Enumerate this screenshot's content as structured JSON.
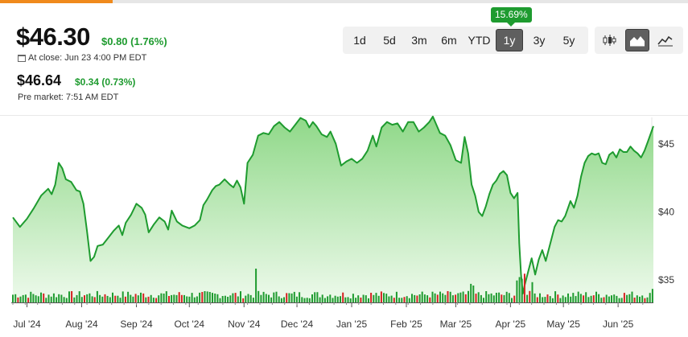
{
  "quote": {
    "price": "$46.30",
    "change": "$0.80 (1.76%)",
    "close_label": "At close: Jun 23 4:00 PM EDT",
    "pre_price": "$46.64",
    "pre_change": "$0.34 (0.73%)",
    "pre_label": "Pre market: 7:51 AM EDT"
  },
  "ranges": [
    "1d",
    "5d",
    "3m",
    "6m",
    "YTD",
    "1y",
    "3y",
    "5y"
  ],
  "active_range": "1y",
  "performance_badge": "15.69%",
  "chart_types": [
    {
      "name": "candlestick-chart-icon",
      "active": false
    },
    {
      "name": "area-chart-icon",
      "active": true
    },
    {
      "name": "line-chart-icon",
      "active": false
    }
  ],
  "colors": {
    "up": "#1e9b2f",
    "down": "#d62020",
    "area_top": "#8fd888",
    "area_bottom": "#eefaec",
    "accent": "#f08a1c"
  },
  "chart_data": {
    "type": "area",
    "title": "",
    "xlabel": "",
    "ylabel": "",
    "ylim": [
      32,
      48
    ],
    "y_ticks": [
      "$35",
      "$40",
      "$45"
    ],
    "y_tick_values": [
      35,
      40,
      45
    ],
    "x_ticks": [
      "Jul '24",
      "Aug '24",
      "Sep '24",
      "Oct '24",
      "Nov '24",
      "Dec '24",
      "Jan '25",
      "Feb '25",
      "Mar '25",
      "Apr '25",
      "May '25",
      "Jun '25"
    ],
    "x_tick_days": [
      8,
      39,
      70,
      100,
      131,
      161,
      192,
      223,
      251,
      282,
      312,
      343
    ],
    "x_range_days": [
      0,
      363
    ],
    "series": [
      {
        "values": [
          [
            0,
            39.6
          ],
          [
            4,
            38.9
          ],
          [
            8,
            39.5
          ],
          [
            12,
            40.3
          ],
          [
            16,
            41.2
          ],
          [
            20,
            41.7
          ],
          [
            22,
            41.3
          ],
          [
            24,
            42.0
          ],
          [
            26,
            43.6
          ],
          [
            28,
            43.2
          ],
          [
            30,
            42.4
          ],
          [
            33,
            42.2
          ],
          [
            36,
            41.6
          ],
          [
            38,
            41.5
          ],
          [
            40,
            40.6
          ],
          [
            42,
            38.6
          ],
          [
            44,
            36.4
          ],
          [
            46,
            36.7
          ],
          [
            48,
            37.5
          ],
          [
            51,
            37.6
          ],
          [
            54,
            38.1
          ],
          [
            57,
            38.6
          ],
          [
            60,
            39.0
          ],
          [
            62,
            38.3
          ],
          [
            64,
            39.2
          ],
          [
            67,
            39.8
          ],
          [
            70,
            40.6
          ],
          [
            73,
            40.3
          ],
          [
            75,
            39.8
          ],
          [
            77,
            38.5
          ],
          [
            80,
            39.1
          ],
          [
            83,
            39.6
          ],
          [
            86,
            39.3
          ],
          [
            88,
            38.7
          ],
          [
            90,
            40.1
          ],
          [
            93,
            39.3
          ],
          [
            96,
            39.0
          ],
          [
            100,
            38.8
          ],
          [
            103,
            39.0
          ],
          [
            106,
            39.4
          ],
          [
            108,
            40.5
          ],
          [
            110,
            40.9
          ],
          [
            113,
            41.6
          ],
          [
            115,
            41.9
          ],
          [
            117,
            42.0
          ],
          [
            120,
            42.4
          ],
          [
            123,
            42.0
          ],
          [
            125,
            41.8
          ],
          [
            127,
            42.3
          ],
          [
            129,
            41.8
          ],
          [
            131,
            40.6
          ],
          [
            133,
            43.6
          ],
          [
            136,
            44.2
          ],
          [
            139,
            45.6
          ],
          [
            142,
            45.8
          ],
          [
            145,
            45.7
          ],
          [
            148,
            46.3
          ],
          [
            151,
            46.6
          ],
          [
            154,
            46.2
          ],
          [
            157,
            45.9
          ],
          [
            160,
            46.4
          ],
          [
            163,
            46.9
          ],
          [
            166,
            46.7
          ],
          [
            168,
            46.2
          ],
          [
            170,
            46.6
          ],
          [
            172,
            46.3
          ],
          [
            175,
            45.7
          ],
          [
            178,
            45.5
          ],
          [
            180,
            45.9
          ],
          [
            183,
            45.0
          ],
          [
            186,
            43.4
          ],
          [
            189,
            43.7
          ],
          [
            192,
            43.9
          ],
          [
            195,
            43.6
          ],
          [
            198,
            43.9
          ],
          [
            201,
            44.5
          ],
          [
            204,
            45.6
          ],
          [
            206,
            44.8
          ],
          [
            209,
            46.2
          ],
          [
            212,
            46.6
          ],
          [
            215,
            46.4
          ],
          [
            218,
            46.5
          ],
          [
            221,
            45.9
          ],
          [
            224,
            46.6
          ],
          [
            227,
            46.6
          ],
          [
            230,
            45.9
          ],
          [
            233,
            46.2
          ],
          [
            236,
            46.6
          ],
          [
            238,
            47.0
          ],
          [
            240,
            46.4
          ],
          [
            242,
            45.8
          ],
          [
            245,
            45.6
          ],
          [
            248,
            44.9
          ],
          [
            251,
            43.8
          ],
          [
            254,
            43.6
          ],
          [
            256,
            45.5
          ],
          [
            258,
            44.3
          ],
          [
            260,
            42.0
          ],
          [
            262,
            41.2
          ],
          [
            264,
            40.0
          ],
          [
            266,
            39.7
          ],
          [
            268,
            40.4
          ],
          [
            270,
            41.3
          ],
          [
            272,
            42.0
          ],
          [
            274,
            42.3
          ],
          [
            276,
            42.8
          ],
          [
            278,
            43.0
          ],
          [
            280,
            42.7
          ],
          [
            282,
            41.4
          ],
          [
            284,
            41.0
          ],
          [
            286,
            41.4
          ],
          [
            287,
            37.7
          ],
          [
            288,
            35.4
          ],
          [
            289,
            34.0
          ],
          [
            290,
            34.6
          ],
          [
            292,
            35.6
          ],
          [
            294,
            36.6
          ],
          [
            296,
            35.4
          ],
          [
            298,
            36.5
          ],
          [
            300,
            37.2
          ],
          [
            302,
            36.4
          ],
          [
            305,
            37.9
          ],
          [
            307,
            38.9
          ],
          [
            309,
            39.4
          ],
          [
            311,
            39.3
          ],
          [
            313,
            39.7
          ],
          [
            316,
            40.8
          ],
          [
            318,
            40.3
          ],
          [
            320,
            41.2
          ],
          [
            322,
            42.6
          ],
          [
            324,
            43.6
          ],
          [
            326,
            44.1
          ],
          [
            328,
            44.3
          ],
          [
            330,
            44.2
          ],
          [
            332,
            44.3
          ],
          [
            334,
            43.6
          ],
          [
            336,
            43.5
          ],
          [
            338,
            44.2
          ],
          [
            340,
            44.4
          ],
          [
            342,
            44.0
          ],
          [
            344,
            44.6
          ],
          [
            346,
            44.4
          ],
          [
            348,
            44.4
          ],
          [
            350,
            44.8
          ],
          [
            352,
            44.5
          ],
          [
            354,
            44.3
          ],
          [
            356,
            44.0
          ],
          [
            358,
            44.5
          ],
          [
            360,
            45.2
          ],
          [
            363,
            46.3
          ]
        ]
      }
    ],
    "volume": {
      "red_days": [
        3,
        9,
        17,
        21,
        33,
        41,
        43,
        46,
        52,
        58,
        64,
        70,
        74,
        77,
        81,
        88,
        94,
        96,
        101,
        107,
        114,
        121,
        126,
        131,
        140,
        147,
        155,
        160,
        166,
        172,
        176,
        182,
        187,
        197,
        203,
        209,
        216,
        222,
        229,
        236,
        241,
        246,
        251,
        257,
        262,
        266,
        272,
        277,
        282,
        284,
        288,
        290,
        293,
        297,
        303,
        309,
        317,
        323,
        329,
        335,
        340,
        347,
        352,
        358
      ],
      "spikes": [
        [
          138,
          1.0
        ],
        [
          286,
          0.65
        ],
        [
          287,
          0.75
        ],
        [
          288,
          0.9
        ],
        [
          289,
          0.7
        ],
        [
          290,
          0.85
        ],
        [
          292,
          0.95
        ],
        [
          294,
          0.6
        ],
        [
          260,
          0.55
        ],
        [
          261,
          0.5
        ],
        [
          185,
          0.45
        ],
        [
          362,
          0.4
        ]
      ]
    }
  }
}
